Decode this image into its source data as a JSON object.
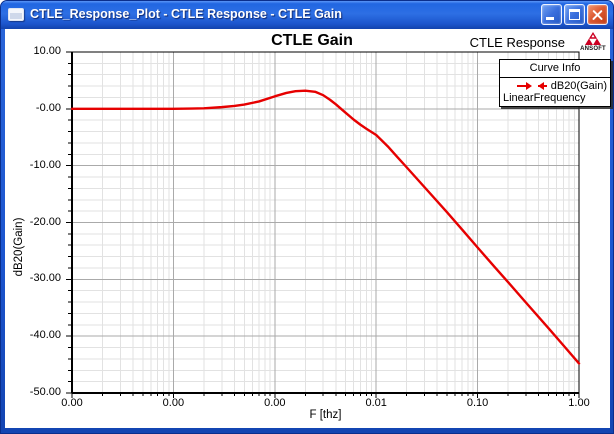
{
  "window": {
    "title": "CTLE_Response_Plot - CTLE Response - CTLE Gain"
  },
  "header": {
    "context_label": "CTLE Response",
    "brand_name": "ANSOFT"
  },
  "legend": {
    "header": "Curve Info",
    "series_label": "dB20(Gain)",
    "sweep_label": "LinearFrequency"
  },
  "colors": {
    "curve": "#e60000",
    "grid_major": "#aaaaaa",
    "grid_minor": "#e2e2e2",
    "axis": "#000000",
    "titlebar_blue": "#2d6fe4",
    "close_red": "#dd5b33",
    "brand_red": "#cc0022"
  },
  "chart_data": {
    "type": "line",
    "title": "CTLE Gain",
    "xlabel": "F [thz]",
    "ylabel": "dB20(Gain)",
    "x_scale": "log",
    "x_range": [
      1e-05,
      1.0
    ],
    "y_range": [
      -50,
      10
    ],
    "y_major_step": 10,
    "y_minor_step": 2,
    "grid": true,
    "legend_position": "top-right",
    "x_ticks": [
      {
        "value": 1e-05,
        "label": "0.00"
      },
      {
        "value": 0.0001,
        "label": "0.00"
      },
      {
        "value": 0.001,
        "label": "0.00"
      },
      {
        "value": 0.01,
        "label": "0.01"
      },
      {
        "value": 0.1,
        "label": "0.10"
      },
      {
        "value": 1.0,
        "label": "1.00"
      }
    ],
    "y_ticks": [
      {
        "value": 10,
        "label": "10.00"
      },
      {
        "value": 0,
        "label": "-0.00"
      },
      {
        "value": -10,
        "label": "-10.00"
      },
      {
        "value": -20,
        "label": "-20.00"
      },
      {
        "value": -30,
        "label": "-30.00"
      },
      {
        "value": -40,
        "label": "-40.00"
      },
      {
        "value": -50,
        "label": "-50.00"
      }
    ],
    "series": [
      {
        "name": "dB20(Gain)",
        "sweep": "LinearFrequency",
        "color": "#e60000",
        "marker": "double-arrow",
        "points": [
          [
            1e-05,
            0.0
          ],
          [
            2e-05,
            0.0
          ],
          [
            5e-05,
            0.0
          ],
          [
            0.0001,
            0.0
          ],
          [
            0.00015,
            0.05
          ],
          [
            0.0002,
            0.1
          ],
          [
            0.0003,
            0.3
          ],
          [
            0.0004,
            0.5
          ],
          [
            0.0005,
            0.75
          ],
          [
            0.0007,
            1.3
          ],
          [
            0.001,
            2.2
          ],
          [
            0.0013,
            2.8
          ],
          [
            0.0016,
            3.1
          ],
          [
            0.002,
            3.2
          ],
          [
            0.0025,
            3.0
          ],
          [
            0.003,
            2.4
          ],
          [
            0.0035,
            1.6
          ],
          [
            0.004,
            0.8
          ],
          [
            0.0045,
            0.0
          ],
          [
            0.005,
            -0.7
          ],
          [
            0.006,
            -1.9
          ],
          [
            0.007,
            -2.8
          ],
          [
            0.008,
            -3.5
          ],
          [
            0.01,
            -4.6
          ],
          [
            0.013,
            -6.6
          ],
          [
            0.016,
            -8.4
          ],
          [
            0.02,
            -10.3
          ],
          [
            0.03,
            -13.8
          ],
          [
            0.05,
            -18.2
          ],
          [
            0.07,
            -21.2
          ],
          [
            0.1,
            -24.4
          ],
          [
            0.15,
            -28.0
          ],
          [
            0.2,
            -30.5
          ],
          [
            0.3,
            -34.1
          ],
          [
            0.5,
            -38.6
          ],
          [
            0.7,
            -41.6
          ],
          [
            1.0,
            -44.8
          ]
        ]
      }
    ]
  }
}
